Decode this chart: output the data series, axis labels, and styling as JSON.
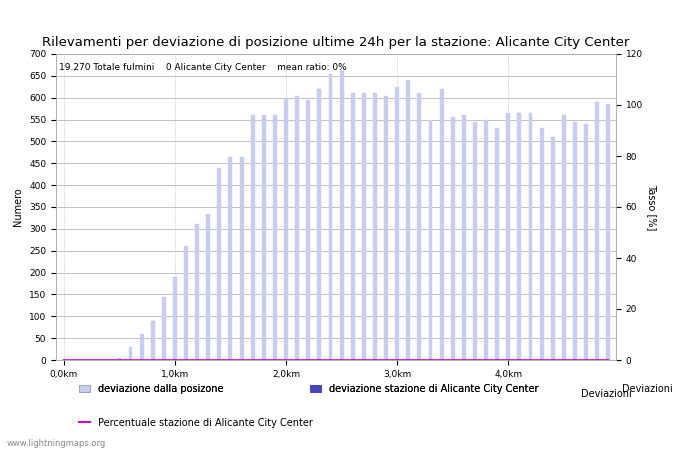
{
  "title": "Rilevamenti per deviazione di posizione ultime 24h per la stazione: Alicante City Center",
  "subtitle": "19.270 Totale fulmini    0 Alicante City Center    mean ratio: 0%",
  "xlabel": "Deviazioni",
  "ylabel_left": "Numero",
  "ylabel_right": "Tasso [%]",
  "ylim_left": [
    0,
    700
  ],
  "ylim_right": [
    0,
    120
  ],
  "xtick_labels": [
    "0,0km",
    "1,0km",
    "2,0km",
    "3,0km",
    "4,0km"
  ],
  "xtick_positions": [
    0,
    10,
    20,
    30,
    40
  ],
  "yticks_left": [
    0,
    50,
    100,
    150,
    200,
    250,
    300,
    350,
    400,
    450,
    500,
    550,
    600,
    650,
    700
  ],
  "yticks_right": [
    0,
    20,
    40,
    60,
    80,
    100,
    120
  ],
  "bar_color_light": "#c8ccee",
  "bar_color_dark": "#4444bb",
  "line_color": "#cc00cc",
  "background_color": "#ffffff",
  "grid_color": "#aaaaaa",
  "text_color": "#000000",
  "watermark": "www.lightningmaps.org",
  "bar_values": [
    0,
    0,
    0,
    0,
    0,
    5,
    30,
    60,
    90,
    145,
    190,
    260,
    310,
    335,
    440,
    465,
    465,
    560,
    560,
    560,
    600,
    605,
    595,
    620,
    655,
    660,
    610,
    610,
    610,
    605,
    625,
    640,
    610,
    550,
    620,
    555,
    560,
    545,
    550,
    530,
    565,
    565,
    565,
    530,
    510,
    560,
    545,
    540,
    590,
    585
  ],
  "station_bar_values": [
    0,
    0,
    0,
    0,
    0,
    0,
    0,
    0,
    0,
    0,
    0,
    0,
    0,
    0,
    0,
    0,
    0,
    0,
    0,
    0,
    0,
    0,
    0,
    0,
    0,
    0,
    0,
    0,
    0,
    0,
    0,
    0,
    0,
    0,
    0,
    0,
    0,
    0,
    0,
    0,
    0,
    0,
    0,
    0,
    0,
    0,
    0,
    0,
    0,
    0
  ],
  "percentage_values": [
    0,
    0,
    0,
    0,
    0,
    0,
    0,
    0,
    0,
    0,
    0,
    0,
    0,
    0,
    0,
    0,
    0,
    0,
    0,
    0,
    0,
    0,
    0,
    0,
    0,
    0,
    0,
    0,
    0,
    0,
    0,
    0,
    0,
    0,
    0,
    0,
    0,
    0,
    0,
    0,
    0,
    0,
    0,
    0,
    0,
    0,
    0,
    0,
    0,
    0
  ],
  "legend_label_light": "deviazione dalla posizone",
  "legend_label_dark": "deviazione stazione di Alicante City Center",
  "legend_label_line": "Percentuale stazione di Alicante City Center",
  "title_fontsize": 9.5,
  "label_fontsize": 7,
  "tick_fontsize": 6.5,
  "subtitle_fontsize": 6.5,
  "legend_fontsize": 7,
  "watermark_fontsize": 6
}
